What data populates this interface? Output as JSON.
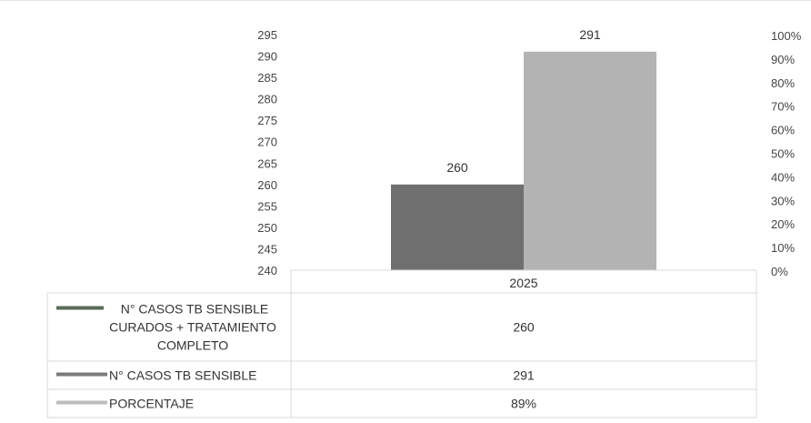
{
  "chart_data": {
    "type": "bar",
    "categories": [
      "2025"
    ],
    "series": [
      {
        "name": "N° CASOS TB SENSIBLE CURADOS + TRATAMIENTO COMPLETO",
        "values": [
          260
        ],
        "color": "#6f6f6f",
        "axis": "left"
      },
      {
        "name": "N° CASOS TB SENSIBLE",
        "values": [
          291
        ],
        "color": "#b3b3b3",
        "axis": "left"
      },
      {
        "name": "PORCENTAJE",
        "values": [
          0.89
        ],
        "color": "#c8c8c8",
        "axis": "right",
        "type": "line"
      }
    ],
    "data_labels": [
      "260",
      "291"
    ],
    "y_ticks": [
      "240",
      "245",
      "250",
      "255",
      "260",
      "265",
      "270",
      "275",
      "280",
      "285",
      "290",
      "295"
    ],
    "ylim": [
      240,
      295
    ],
    "y2_ticks": [
      "0%",
      "10%",
      "20%",
      "30%",
      "40%",
      "50%",
      "60%",
      "70%",
      "80%",
      "90%",
      "100%"
    ],
    "y2lim": [
      0,
      1
    ],
    "legend_placement": "data-table-below",
    "data_table": {
      "header": "2025",
      "rows": [
        {
          "label_lines": [
            "N° CASOS TB SENSIBLE",
            "CURADOS + TRATAMIENTO",
            "COMPLETO"
          ],
          "value": "260",
          "swatch": "#5a6b5a"
        },
        {
          "label_lines": [
            "N° CASOS TB SENSIBLE"
          ],
          "value": "291",
          "swatch": "#7a7a7a"
        },
        {
          "label_lines": [
            "PORCENTAJE"
          ],
          "value": "89%",
          "swatch": "#bdbdbd"
        }
      ]
    },
    "grid": false
  }
}
